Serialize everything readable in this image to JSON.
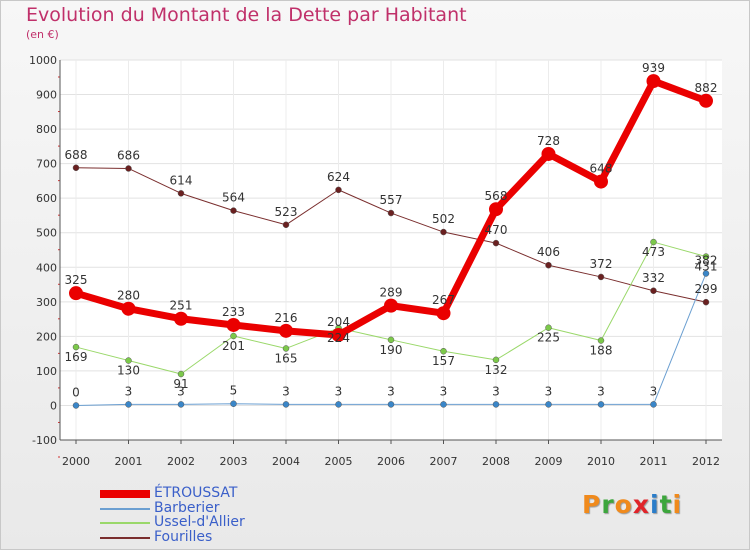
{
  "title": "Evolution du Montant de la Dette par Habitant",
  "unit": "(en €)",
  "brand": [
    "P",
    "r",
    "o",
    "x",
    "i",
    "t",
    "i"
  ],
  "brand_colors": [
    "#f08a1c",
    "#3da63d",
    "#f08a1c",
    "#e0242a",
    "#2a7dc9",
    "#3da63d",
    "#f08a1c"
  ],
  "chart_data": {
    "type": "line",
    "title": "Evolution du Montant de la Dette par Habitant",
    "ylabel": "(en €)",
    "xlabel": "",
    "ylim": [
      -100,
      1000
    ],
    "yticks": [
      "-100",
      "0",
      "100",
      "200",
      "300",
      "400",
      "500",
      "600",
      "700",
      "800",
      "900",
      "1000"
    ],
    "categories": [
      "2000",
      "2001",
      "2002",
      "2003",
      "2004",
      "2005",
      "2006",
      "2007",
      "2008",
      "2009",
      "2010",
      "2011",
      "2012"
    ],
    "series": [
      {
        "name": "ÉTROUSSAT",
        "color": "#ea0000",
        "width": 7,
        "marker": 7,
        "labels": "above",
        "values": [
          325,
          280,
          251,
          233,
          216,
          204,
          289,
          267,
          568,
          728,
          648,
          939,
          882
        ]
      },
      {
        "name": "Barberier",
        "color": "#6b9fd1",
        "width": 1,
        "marker": 3,
        "markerColor": "#3a86c8",
        "labels": "above",
        "values": [
          0,
          3,
          3,
          5,
          3,
          3,
          3,
          3,
          3,
          3,
          3,
          3,
          382
        ]
      },
      {
        "name": "Ussel-d'Allier",
        "color": "#9ad86a",
        "width": 1,
        "marker": 3,
        "markerColor": "#7cc94a",
        "labels": "below",
        "values": [
          169,
          130,
          91,
          201,
          165,
          224,
          190,
          157,
          132,
          225,
          188,
          473,
          431
        ]
      },
      {
        "name": "Fourilles",
        "color": "#7a2e2e",
        "width": 1,
        "marker": 3,
        "markerColor": "#6a2020",
        "labels": "above",
        "values": [
          688,
          686,
          614,
          564,
          523,
          624,
          557,
          502,
          470,
          406,
          372,
          332,
          299
        ]
      }
    ]
  }
}
